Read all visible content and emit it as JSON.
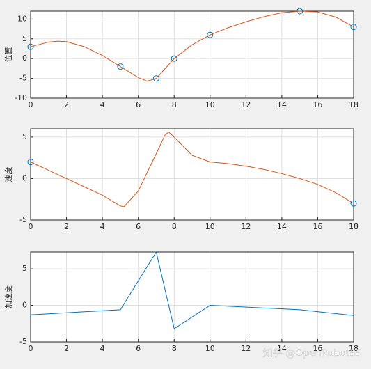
{
  "chart_data": [
    {
      "type": "line",
      "ylabel": "位置",
      "xlim": [
        0,
        18
      ],
      "xticks": [
        0,
        2,
        4,
        6,
        8,
        10,
        12,
        14,
        16,
        18
      ],
      "ylim": [
        -10,
        12
      ],
      "yticks": [
        -10,
        -5,
        0,
        5,
        10
      ],
      "grid": true,
      "series": [
        {
          "color": "#d95319",
          "marker": false,
          "x": [
            0,
            1,
            1.5,
            2,
            3,
            4,
            5,
            6,
            6.5,
            7,
            7.5,
            8,
            9,
            10,
            11,
            12,
            13,
            14,
            15,
            16,
            17,
            18
          ],
          "values": [
            3,
            4.2,
            4.4,
            4.3,
            3,
            0.8,
            -2,
            -4.8,
            -5.7,
            -5,
            -2.5,
            0,
            3.5,
            6,
            7.8,
            9.3,
            10.6,
            11.6,
            12,
            11.8,
            10.5,
            8
          ]
        },
        {
          "color": "#0072bd",
          "marker": true,
          "x": [
            0,
            5,
            7,
            8,
            10,
            15,
            18
          ],
          "values": [
            3,
            -2,
            -5,
            0,
            6,
            12,
            8
          ]
        }
      ]
    },
    {
      "type": "line",
      "ylabel": "速度",
      "xlim": [
        0,
        18
      ],
      "xticks": [
        0,
        2,
        4,
        6,
        8,
        10,
        12,
        14,
        16,
        18
      ],
      "ylim": [
        -5,
        6
      ],
      "yticks": [
        -5,
        0,
        5
      ],
      "grid": true,
      "series": [
        {
          "color": "#d95319",
          "marker": false,
          "x": [
            0,
            1,
            2,
            3,
            4,
            5,
            5.2,
            6,
            7,
            7.5,
            7.7,
            8,
            9,
            10,
            11,
            12,
            13,
            14,
            15,
            16,
            17,
            18
          ],
          "values": [
            2,
            1,
            0,
            -1,
            -2,
            -3.3,
            -3.4,
            -1.5,
            3,
            5.3,
            5.6,
            5,
            2.8,
            2,
            1.8,
            1.5,
            1.1,
            0.6,
            0,
            -0.7,
            -1.7,
            -3
          ]
        },
        {
          "color": "#0072bd",
          "marker": true,
          "x": [
            0,
            18
          ],
          "values": [
            2,
            -3
          ]
        }
      ]
    },
    {
      "type": "line",
      "ylabel": "加速度",
      "xlim": [
        0,
        18
      ],
      "xticks": [
        0,
        2,
        4,
        6,
        8,
        10,
        12,
        14,
        16,
        18
      ],
      "ylim": [
        -5,
        7.3
      ],
      "yticks": [
        -5,
        0,
        5
      ],
      "grid": true,
      "series": [
        {
          "color": "#0072bd",
          "marker": false,
          "x": [
            0,
            5,
            7,
            8,
            10,
            15,
            18
          ],
          "values": [
            -1.3,
            -0.6,
            7.3,
            -3.2,
            0,
            -0.6,
            -1.4
          ]
        }
      ]
    }
  ],
  "watermark": "知乎 @OpenRobot55"
}
